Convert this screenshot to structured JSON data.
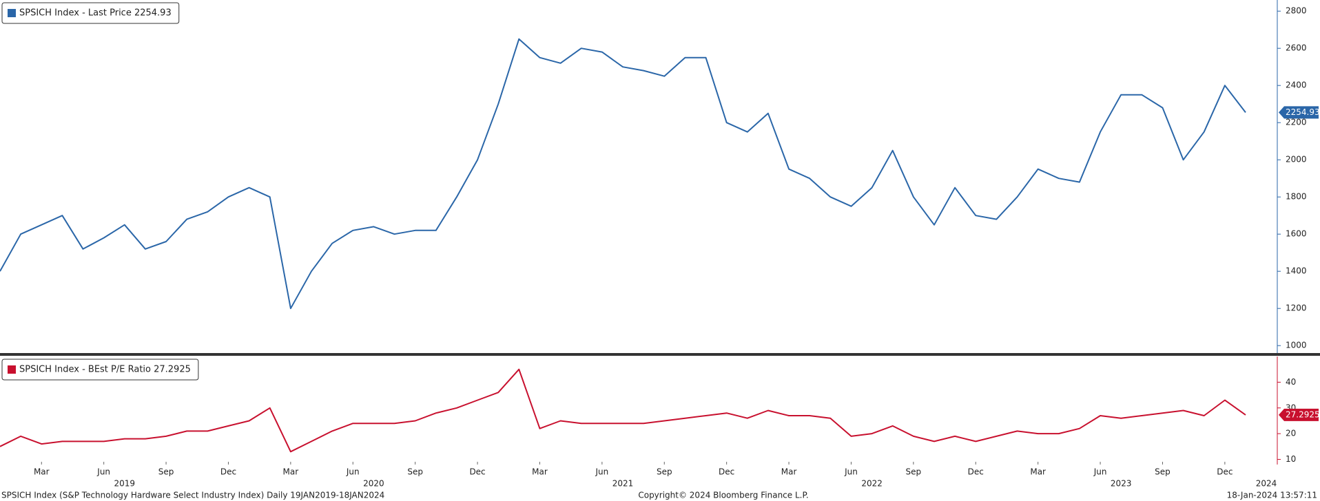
{
  "chart_data": [
    {
      "type": "line",
      "x": [
        "2019-01",
        "2019-02",
        "2019-03",
        "2019-04",
        "2019-05",
        "2019-06",
        "2019-07",
        "2019-08",
        "2019-09",
        "2019-10",
        "2019-11",
        "2019-12",
        "2020-01",
        "2020-02",
        "2020-03",
        "2020-04",
        "2020-05",
        "2020-06",
        "2020-07",
        "2020-08",
        "2020-09",
        "2020-10",
        "2020-11",
        "2020-12",
        "2021-01",
        "2021-02",
        "2021-03",
        "2021-04",
        "2021-05",
        "2021-06",
        "2021-07",
        "2021-08",
        "2021-09",
        "2021-10",
        "2021-11",
        "2021-12",
        "2022-01",
        "2022-02",
        "2022-03",
        "2022-04",
        "2022-05",
        "2022-06",
        "2022-07",
        "2022-08",
        "2022-09",
        "2022-10",
        "2022-11",
        "2022-12",
        "2023-01",
        "2023-02",
        "2023-03",
        "2023-04",
        "2023-05",
        "2023-06",
        "2023-07",
        "2023-08",
        "2023-09",
        "2023-10",
        "2023-11",
        "2023-12",
        "2024-01"
      ],
      "xlim": [
        "2019-01",
        "2024-01"
      ],
      "series": [
        {
          "name": "SPSICH Index - Last Price 2254.93",
          "color": "#2a66a8",
          "values": [
            1400,
            1600,
            1650,
            1700,
            1520,
            1580,
            1650,
            1520,
            1560,
            1680,
            1720,
            1800,
            1850,
            1800,
            1200,
            1400,
            1550,
            1620,
            1640,
            1600,
            1620,
            1620,
            1800,
            2000,
            2300,
            2650,
            2550,
            2520,
            2600,
            2580,
            2500,
            2480,
            2450,
            2550,
            2550,
            2200,
            2150,
            2250,
            1950,
            1900,
            1800,
            1750,
            1850,
            2050,
            1800,
            1650,
            1850,
            1700,
            1680,
            1800,
            1950,
            1900,
            1880,
            2150,
            2350,
            2350,
            2280,
            2000,
            2150,
            2400,
            2254.93
          ]
        }
      ],
      "ylim": [
        960,
        2860
      ],
      "yticks": [
        1000,
        1200,
        1400,
        1600,
        1800,
        2000,
        2200,
        2400,
        2600,
        2800
      ]
    },
    {
      "type": "line",
      "x": [
        "2019-01",
        "2019-02",
        "2019-03",
        "2019-04",
        "2019-05",
        "2019-06",
        "2019-07",
        "2019-08",
        "2019-09",
        "2019-10",
        "2019-11",
        "2019-12",
        "2020-01",
        "2020-02",
        "2020-03",
        "2020-04",
        "2020-05",
        "2020-06",
        "2020-07",
        "2020-08",
        "2020-09",
        "2020-10",
        "2020-11",
        "2020-12",
        "2021-01",
        "2021-02",
        "2021-03",
        "2021-04",
        "2021-05",
        "2021-06",
        "2021-07",
        "2021-08",
        "2021-09",
        "2021-10",
        "2021-11",
        "2021-12",
        "2022-01",
        "2022-02",
        "2022-03",
        "2022-04",
        "2022-05",
        "2022-06",
        "2022-07",
        "2022-08",
        "2022-09",
        "2022-10",
        "2022-11",
        "2022-12",
        "2023-01",
        "2023-02",
        "2023-03",
        "2023-04",
        "2023-05",
        "2023-06",
        "2023-07",
        "2023-08",
        "2023-09",
        "2023-10",
        "2023-11",
        "2023-12",
        "2024-01"
      ],
      "xlim": [
        "2019-01",
        "2024-01"
      ],
      "series": [
        {
          "name": "SPSICH Index - BEst P/E Ratio 27.2925",
          "color": "#c8102e",
          "values": [
            15,
            19,
            16,
            17,
            17,
            17,
            18,
            18,
            19,
            21,
            21,
            23,
            25,
            30,
            13,
            17,
            21,
            24,
            24,
            24,
            25,
            28,
            30,
            33,
            36,
            45,
            22,
            25,
            24,
            24,
            24,
            24,
            25,
            26,
            27,
            28,
            26,
            29,
            27,
            27,
            26,
            19,
            20,
            23,
            19,
            17,
            19,
            17,
            19,
            21,
            20,
            20,
            22,
            27,
            26,
            27,
            28,
            29,
            27,
            33,
            27.2925
          ]
        }
      ],
      "ylim": [
        8,
        50
      ],
      "yticks": [
        10,
        20,
        30,
        40
      ],
      "xticks": [
        {
          "value": "2019-03",
          "label": "Mar"
        },
        {
          "value": "2019-06",
          "label": "Jun"
        },
        {
          "value": "2019-09",
          "label": "Sep"
        },
        {
          "value": "2019-12",
          "label": "Dec"
        },
        {
          "value": "2020-03",
          "label": "Mar"
        },
        {
          "value": "2020-06",
          "label": "Jun"
        },
        {
          "value": "2020-09",
          "label": "Sep"
        },
        {
          "value": "2020-12",
          "label": "Dec"
        },
        {
          "value": "2021-03",
          "label": "Mar"
        },
        {
          "value": "2021-06",
          "label": "Jun"
        },
        {
          "value": "2021-09",
          "label": "Sep"
        },
        {
          "value": "2021-12",
          "label": "Dec"
        },
        {
          "value": "2022-03",
          "label": "Mar"
        },
        {
          "value": "2022-06",
          "label": "Jun"
        },
        {
          "value": "2022-09",
          "label": "Sep"
        },
        {
          "value": "2022-12",
          "label": "Dec"
        },
        {
          "value": "2023-03",
          "label": "Mar"
        },
        {
          "value": "2023-06",
          "label": "Jun"
        },
        {
          "value": "2023-09",
          "label": "Sep"
        },
        {
          "value": "2023-12",
          "label": "Dec"
        }
      ],
      "years": [
        "2019",
        "2020",
        "2021",
        "2022",
        "2023",
        "2024"
      ]
    }
  ],
  "footer": {
    "left": "SPSICH Index (S&P Technology Hardware Select Industry Index)  Daily 19JAN2019-18JAN2024",
    "center": "Copyright© 2024 Bloomberg Finance L.P.",
    "right": "18-Jan-2024 13:57:11"
  }
}
